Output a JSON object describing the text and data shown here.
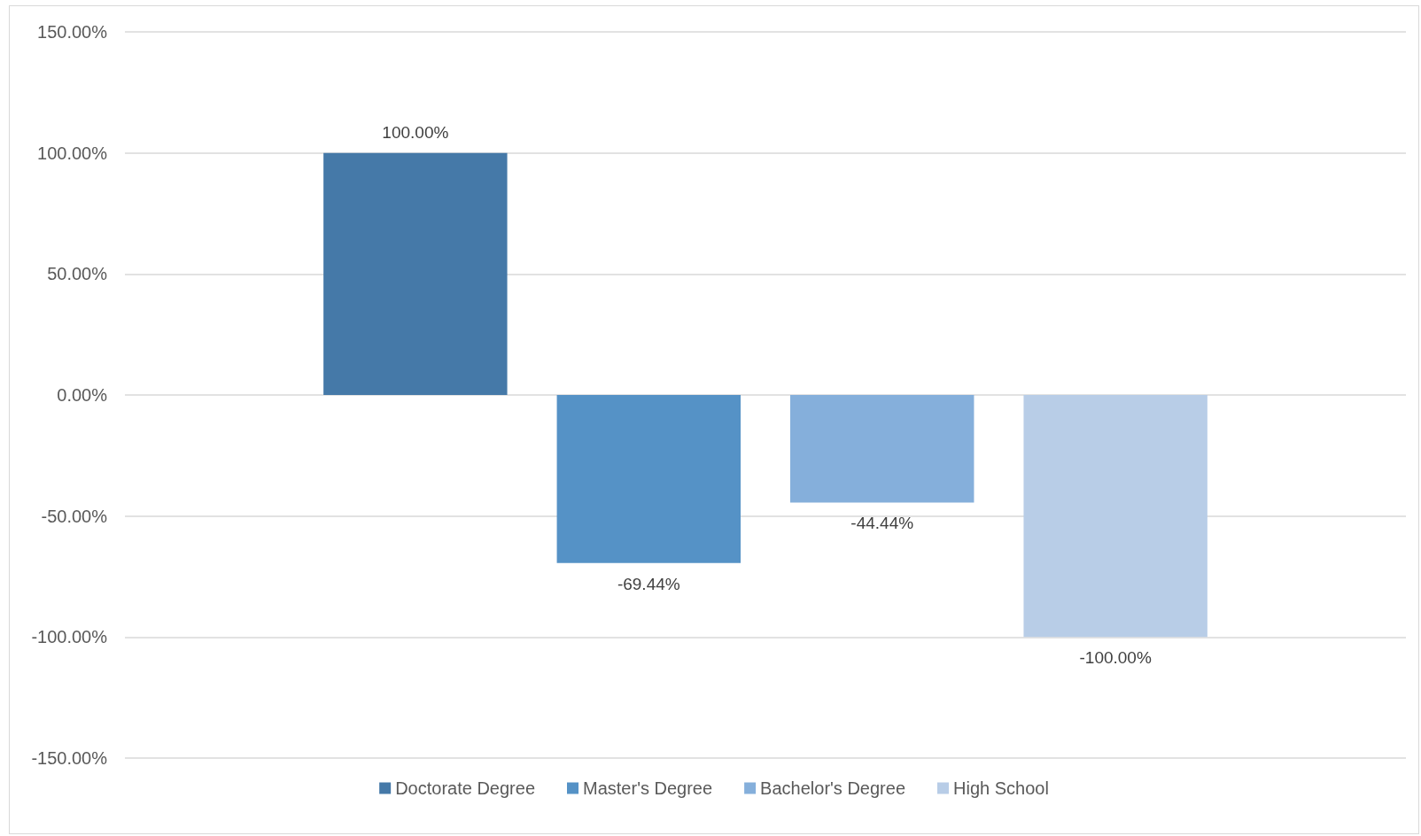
{
  "chart_data": {
    "type": "bar",
    "categories": [
      null
    ],
    "series": [
      {
        "name": "Doctorate Degree",
        "color": "#4579a8",
        "values": [
          100
        ],
        "value_labels": [
          "100.00%"
        ]
      },
      {
        "name": "Master's Degree",
        "color": "#5592c6",
        "values": [
          -69.44
        ],
        "value_labels": [
          "-69.44%"
        ]
      },
      {
        "name": "Bachelor's Degree",
        "color": "#85afdb",
        "values": [
          -44.44
        ],
        "value_labels": [
          "-44.44%"
        ]
      },
      {
        "name": "High School",
        "color": "#b8cde7",
        "values": [
          -100
        ],
        "value_labels": [
          "-100.00%"
        ]
      }
    ],
    "ylim": [
      -150,
      150
    ],
    "yticks": [
      {
        "value": -150,
        "label": "-150.00%"
      },
      {
        "value": -100,
        "label": "-100.00%"
      },
      {
        "value": -50,
        "label": "-50.00%"
      },
      {
        "value": 0,
        "label": "0.00%"
      },
      {
        "value": 50,
        "label": "50.00%"
      },
      {
        "value": 100,
        "label": "100.00%"
      },
      {
        "value": 150,
        "label": "150.00%"
      }
    ],
    "grid": "y",
    "legend": "bottom"
  }
}
